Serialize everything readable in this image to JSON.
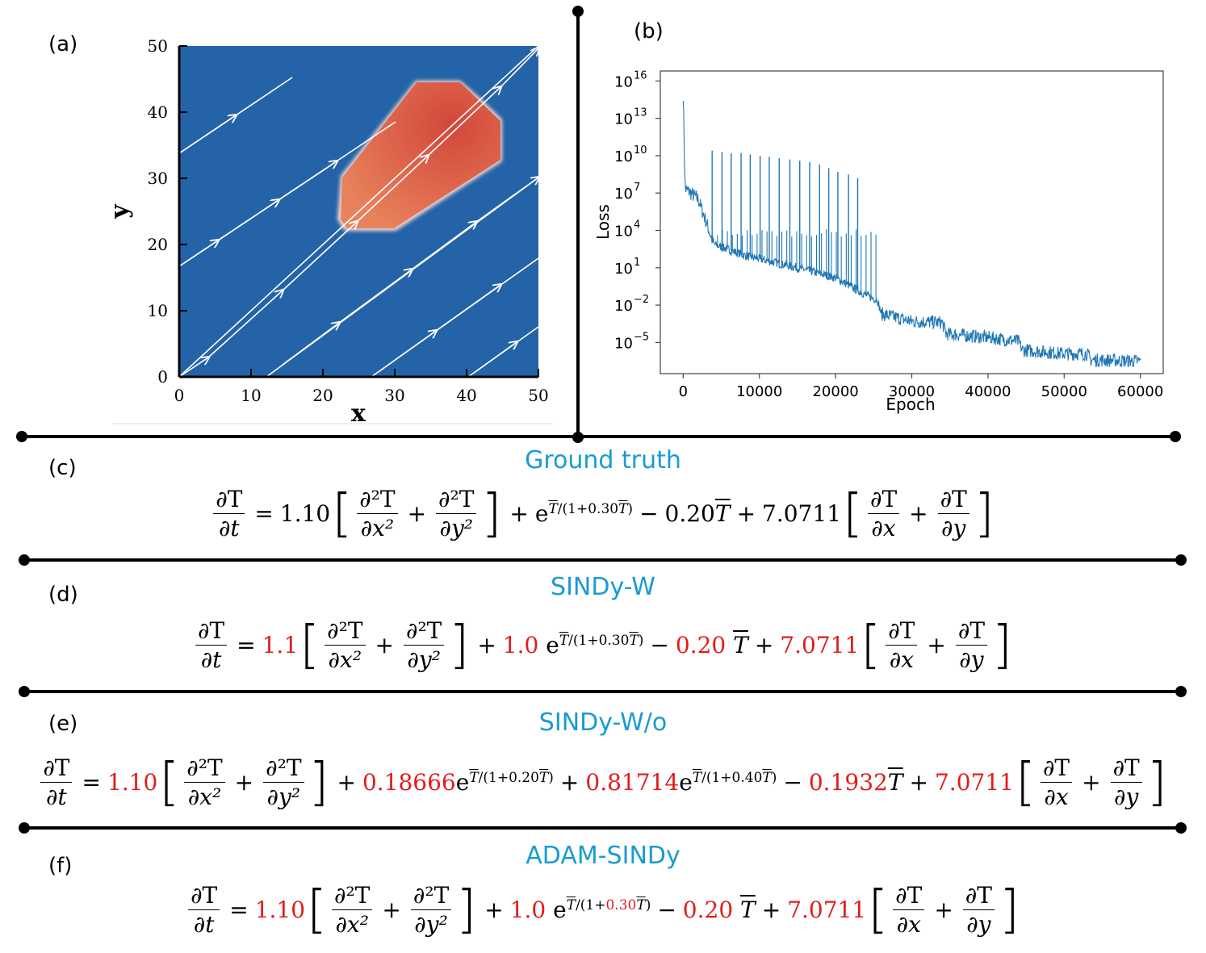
{
  "panels": {
    "a": {
      "label": "(a)"
    },
    "b": {
      "label": "(b)"
    },
    "c": {
      "label": "(c)",
      "title": "Ground truth"
    },
    "d": {
      "label": "(d)",
      "title": "SINDy-W"
    },
    "e": {
      "label": "(e)",
      "title": "SINDy-W/o"
    },
    "f": {
      "label": "(f)",
      "title": "ADAM-SINDy"
    }
  },
  "field_plot": {
    "xlabel": "x",
    "ylabel": "y",
    "xticks": [
      "0",
      "10",
      "20",
      "30",
      "40",
      "50"
    ],
    "yticks": [
      "0",
      "10",
      "20",
      "30",
      "40",
      "50"
    ],
    "background_color": "#2563a8",
    "hot_color": "#dd5a3c"
  },
  "chart_data": {
    "type": "line",
    "title": "",
    "xlabel": "Epoch",
    "ylabel": "Loss",
    "yscale": "log",
    "xlim": [
      -3000,
      63000
    ],
    "ylim_exp": [
      -7.5,
      16.8
    ],
    "xticks": [
      "0",
      "10000",
      "20000",
      "30000",
      "40000",
      "50000",
      "60000"
    ],
    "yticks": [
      {
        "base": "10",
        "exp": "16"
      },
      {
        "base": "10",
        "exp": "13"
      },
      {
        "base": "10",
        "exp": "10"
      },
      {
        "base": "10",
        "exp": "7"
      },
      {
        "base": "10",
        "exp": "4"
      },
      {
        "base": "10",
        "exp": "1"
      },
      {
        "base": "10",
        "exp": "−2"
      },
      {
        "base": "10",
        "exp": "−5"
      }
    ],
    "series_color": "#1f77b4",
    "series": [
      {
        "name": "loss (log10)",
        "x": [
          0,
          300,
          800,
          2000,
          4000,
          8000,
          15000,
          20000,
          24000,
          25500,
          26000,
          30000,
          34000,
          34500,
          40000,
          44000,
          44500,
          50000,
          53000,
          53500,
          60000
        ],
        "values": [
          15.0,
          7.3,
          7.1,
          6.5,
          2.9,
          2.0,
          1.0,
          0.2,
          -1.2,
          -1.6,
          -2.7,
          -3.3,
          -3.4,
          -4.3,
          -4.6,
          -4.9,
          -5.6,
          -5.9,
          -5.9,
          -6.4,
          -6.5
        ]
      },
      {
        "name": "spikes",
        "x": [
          3800,
          5100,
          6300,
          7600,
          8800,
          10100,
          11300,
          12600,
          14000,
          15300,
          16600,
          17900,
          19100,
          20300,
          21700,
          22900
        ],
        "values": [
          10.4,
          10.3,
          10.2,
          10.2,
          10.1,
          10.0,
          9.9,
          9.8,
          9.7,
          9.6,
          9.5,
          9.3,
          9.0,
          8.7,
          8.5,
          8.2
        ]
      }
    ]
  },
  "equations": {
    "lhs_num": "∂T",
    "lhs_den": "∂t",
    "d2x_num": "∂²T",
    "d2x_den": "∂x²",
    "d2y_num": "∂²T",
    "d2y_den": "∂y²",
    "dx_num": "∂T",
    "dx_den": "∂x",
    "dy_num": "∂T",
    "dy_den": "∂y",
    "T": "T",
    "exp_base": "e",
    "ground_truth": {
      "c1": "1.10",
      "c2": "",
      "exp1": "0.30",
      "c3": "0.20",
      "c4": "7.0711"
    },
    "sindy_w": {
      "c1": "1.1",
      "c2": "1.0",
      "exp1": "0.30",
      "c3": "0.20",
      "c4": "7.0711"
    },
    "sindy_wo": {
      "c1": "1.10",
      "c2a": "0.18666",
      "exp_a": "0.20",
      "c2b": "0.81714",
      "exp_b": "0.40",
      "c3": "0.1932",
      "c4": "7.0711"
    },
    "adam_sindy": {
      "c1": "1.10",
      "c2": "1.0",
      "exp1": "0.30",
      "c3": "0.20",
      "c4": "7.0711"
    }
  }
}
